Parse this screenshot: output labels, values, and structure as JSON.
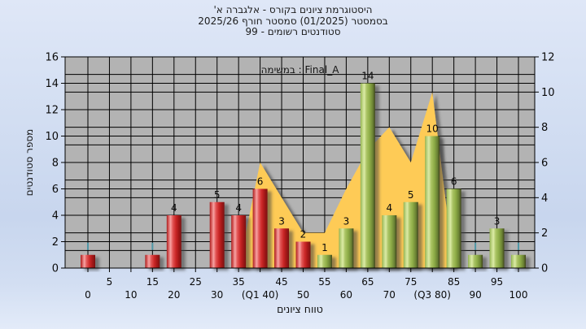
{
  "title": {
    "line1": "היסטוגרמת ציונים בקורס - אלגברה א'",
    "line2": "בסמסטר  (01/2025)  סמסטר חורף 2025/26",
    "line3": "סטודנטים רשומים - 99"
  },
  "legend": {
    "label": "במשימה : Final_A"
  },
  "chart_data": {
    "type": "bar",
    "title": "היסטוגרמת ציונים בקורס - אלגברה א' בסמסטר (01/2025) סמסטר חורף 2025/26 — סטודנטים רשומים - 99",
    "xlabel": "טווח ציונים",
    "ylabel": "מספר סטודנטים",
    "legend_entries": [
      "במשימה : Final_A"
    ],
    "axes": {
      "x": {
        "min": 0,
        "max": 100,
        "tick_step": 5
      },
      "left_y": {
        "min": 0,
        "max": 16,
        "label_step": 2,
        "grid_step": 2
      },
      "right_y": {
        "min": 0,
        "max": 12,
        "label_step": 2,
        "grid_step": 1
      }
    },
    "x_tick_labels_lower": [
      "0",
      "10",
      "20",
      "30",
      "(Q1 40)",
      "50",
      "60",
      "70",
      "(Q3 80)",
      "90",
      "100"
    ],
    "x_tick_labels_upper": [
      "5",
      "15",
      "25",
      "35",
      "45",
      "55",
      "65",
      "75",
      "85",
      "95"
    ],
    "bars": [
      {
        "grade": 0,
        "count": 1,
        "series": "red",
        "show_label": false,
        "marker": true
      },
      {
        "grade": 15,
        "count": 1,
        "series": "red",
        "show_label": false,
        "marker": true
      },
      {
        "grade": 20,
        "count": 4,
        "series": "red",
        "show_label": true,
        "marker": false
      },
      {
        "grade": 30,
        "count": 5,
        "series": "red",
        "show_label": true,
        "marker": false
      },
      {
        "grade": 35,
        "count": 4,
        "series": "red",
        "show_label": true,
        "marker": false
      },
      {
        "grade": 40,
        "count": 6,
        "series": "red",
        "show_label": true,
        "marker": false
      },
      {
        "grade": 45,
        "count": 3,
        "series": "red",
        "show_label": true,
        "marker": false
      },
      {
        "grade": 50,
        "count": 2,
        "series": "red",
        "show_label": true,
        "marker": false
      },
      {
        "grade": 55,
        "count": 1,
        "series": "green",
        "show_label": true,
        "marker": false
      },
      {
        "grade": 60,
        "count": 3,
        "series": "green",
        "show_label": true,
        "marker": false
      },
      {
        "grade": 65,
        "count": 14,
        "series": "green",
        "show_label": true,
        "marker": false
      },
      {
        "grade": 70,
        "count": 4,
        "series": "green",
        "show_label": true,
        "marker": false
      },
      {
        "grade": 75,
        "count": 5,
        "series": "green",
        "show_label": true,
        "marker": false
      },
      {
        "grade": 80,
        "count": 10,
        "series": "green",
        "show_label": true,
        "marker": false
      },
      {
        "grade": 85,
        "count": 6,
        "series": "green",
        "show_label": true,
        "marker": false
      },
      {
        "grade": 90,
        "count": 1,
        "series": "green",
        "show_label": false,
        "marker": true
      },
      {
        "grade": 95,
        "count": 3,
        "series": "green",
        "show_label": true,
        "marker": false
      },
      {
        "grade": 100,
        "count": 1,
        "series": "green",
        "show_label": false,
        "marker": true
      }
    ],
    "area_series": {
      "name": "distribution-area",
      "axis": "right_y",
      "color": "#fecb57",
      "points": [
        [
          35,
          0
        ],
        [
          40,
          6
        ],
        [
          45,
          4
        ],
        [
          50,
          2
        ],
        [
          55,
          2
        ],
        [
          60,
          4.5
        ],
        [
          65,
          6.7
        ],
        [
          70,
          8
        ],
        [
          75,
          6
        ],
        [
          80,
          10
        ],
        [
          85,
          0
        ]
      ]
    },
    "series_colors": {
      "red": "#cc2222",
      "green": "#9bbb59"
    },
    "plot_colors": {
      "background": "#b3b3b3",
      "grid": "#000000",
      "marker_tick": "#4e96a5"
    }
  }
}
